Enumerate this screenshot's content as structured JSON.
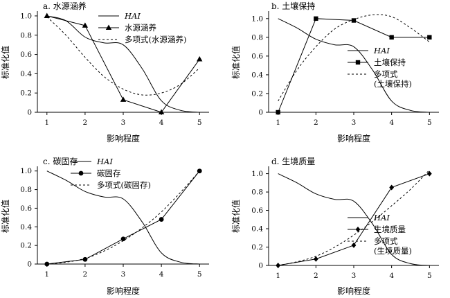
{
  "figure": {
    "panel_titles": [
      "a. 水源涵养",
      "b. 土壤保持",
      "c. 碳固存",
      "d. 生境质量"
    ]
  },
  "chart_data": [
    {
      "type": "line",
      "title": "a. 水源涵养",
      "xlabel": "影响程度",
      "ylabel": "标准化值",
      "xticks": [
        1,
        2,
        3,
        4,
        5
      ],
      "yticks": [
        "0",
        "0.2",
        "0.4",
        "0.6",
        "0.8",
        "1.0"
      ],
      "xlim": [
        0.75,
        5.25
      ],
      "ylim": [
        0,
        1.05
      ],
      "grid": false,
      "legend_position": "top-right",
      "series": [
        {
          "name": "HAI",
          "style": "solid",
          "marker": "none",
          "x": [
            1,
            1.5,
            2,
            2.5,
            3,
            3.5,
            4,
            4.5,
            5
          ],
          "y": [
            1.0,
            0.95,
            0.78,
            0.72,
            0.7,
            0.45,
            0.12,
            0.02,
            0
          ]
        },
        {
          "name": "水源涵养",
          "style": "solid",
          "marker": "triangle",
          "x": [
            1,
            2,
            3,
            4,
            5
          ],
          "y": [
            1.0,
            0.9,
            0.13,
            0.0,
            0.55
          ]
        },
        {
          "name": "多项式(水源涵养)",
          "style": "dashed",
          "marker": "none",
          "x": [
            1,
            1.5,
            2,
            2.5,
            3,
            3.5,
            4,
            4.5,
            5
          ],
          "y": [
            0.99,
            0.8,
            0.57,
            0.37,
            0.24,
            0.18,
            0.2,
            0.29,
            0.46
          ]
        }
      ]
    },
    {
      "type": "line",
      "title": "b. 土壤保持",
      "xlabel": "影响程度",
      "ylabel": "标准化值",
      "xticks": [
        1,
        2,
        3,
        4,
        5
      ],
      "yticks": [
        "0",
        "0.2",
        "0.4",
        "0.6",
        "0.8",
        "1.0"
      ],
      "xlim": [
        0.75,
        5.25
      ],
      "ylim": [
        0,
        1.08
      ],
      "grid": false,
      "legend_position": "bottom-right",
      "series": [
        {
          "name": "HAI",
          "style": "solid",
          "marker": "none",
          "x": [
            1,
            1.5,
            2,
            2.5,
            3,
            3.5,
            4,
            4.5,
            5
          ],
          "y": [
            1.0,
            0.9,
            0.78,
            0.72,
            0.7,
            0.45,
            0.12,
            0.02,
            0
          ]
        },
        {
          "name": "土壤保持",
          "style": "solid",
          "marker": "square",
          "x": [
            1,
            2,
            3,
            4,
            5
          ],
          "y": [
            0.0,
            1.0,
            0.98,
            0.8,
            0.8
          ]
        },
        {
          "name": "多项式\n(土壤保持)",
          "style": "dashed",
          "marker": "none",
          "x": [
            1,
            1.5,
            2,
            2.5,
            3,
            3.5,
            4,
            4.5,
            5
          ],
          "y": [
            0.12,
            0.45,
            0.7,
            0.89,
            0.99,
            1.04,
            1.02,
            0.9,
            0.75
          ]
        }
      ]
    },
    {
      "type": "line",
      "title": "c. 碳固存",
      "xlabel": "影响程度",
      "ylabel": "标准化值",
      "xticks": [
        1,
        2,
        3,
        4,
        5
      ],
      "yticks": [
        "0",
        "0.2",
        "0.4",
        "0.6",
        "0.8",
        "1.0"
      ],
      "xlim": [
        0.75,
        5.25
      ],
      "ylim": [
        0,
        1.05
      ],
      "grid": false,
      "legend_position": "top-left",
      "series": [
        {
          "name": "HAI",
          "style": "solid",
          "marker": "none",
          "x": [
            1,
            1.5,
            2,
            2.5,
            3,
            3.5,
            4,
            4.5,
            5
          ],
          "y": [
            1.0,
            0.9,
            0.78,
            0.72,
            0.7,
            0.45,
            0.12,
            0.02,
            0
          ]
        },
        {
          "name": "碳固存",
          "style": "solid",
          "marker": "circle",
          "x": [
            1,
            2,
            3,
            4,
            5
          ],
          "y": [
            0.0,
            0.05,
            0.27,
            0.48,
            1.0
          ]
        },
        {
          "name": "多项式(碳固存)",
          "style": "dashed",
          "marker": "none",
          "x": [
            1,
            1.5,
            2,
            2.5,
            3,
            3.5,
            4,
            4.5,
            5
          ],
          "y": [
            0.0,
            0.02,
            0.06,
            0.14,
            0.25,
            0.39,
            0.56,
            0.77,
            1.0
          ]
        }
      ]
    },
    {
      "type": "line",
      "title": "d. 生境质量",
      "xlabel": "影响程度",
      "ylabel": "标准化值",
      "xticks": [
        1,
        2,
        3,
        4,
        5
      ],
      "yticks": [
        "0",
        "0.2",
        "0.4",
        "0.6",
        "0.8",
        "1.0"
      ],
      "xlim": [
        0.75,
        5.25
      ],
      "ylim": [
        0,
        1.08
      ],
      "grid": false,
      "legend_position": "bottom-right",
      "series": [
        {
          "name": "HAI",
          "style": "solid",
          "marker": "none",
          "x": [
            1,
            1.5,
            2,
            2.5,
            3,
            3.5,
            4,
            4.5,
            5
          ],
          "y": [
            1.0,
            0.9,
            0.78,
            0.72,
            0.7,
            0.45,
            0.12,
            0.02,
            0
          ]
        },
        {
          "name": "生境质量",
          "style": "solid",
          "marker": "diamond",
          "x": [
            1,
            2,
            3,
            4,
            5
          ],
          "y": [
            0.0,
            0.07,
            0.22,
            0.85,
            1.0
          ]
        },
        {
          "name": "多项式\n(生境质量)",
          "style": "dashed",
          "marker": "none",
          "x": [
            1,
            1.5,
            2,
            2.5,
            3,
            3.5,
            4,
            4.5,
            5
          ],
          "y": [
            0.0,
            0.04,
            0.1,
            0.2,
            0.33,
            0.48,
            0.65,
            0.83,
            1.04
          ]
        }
      ]
    }
  ]
}
